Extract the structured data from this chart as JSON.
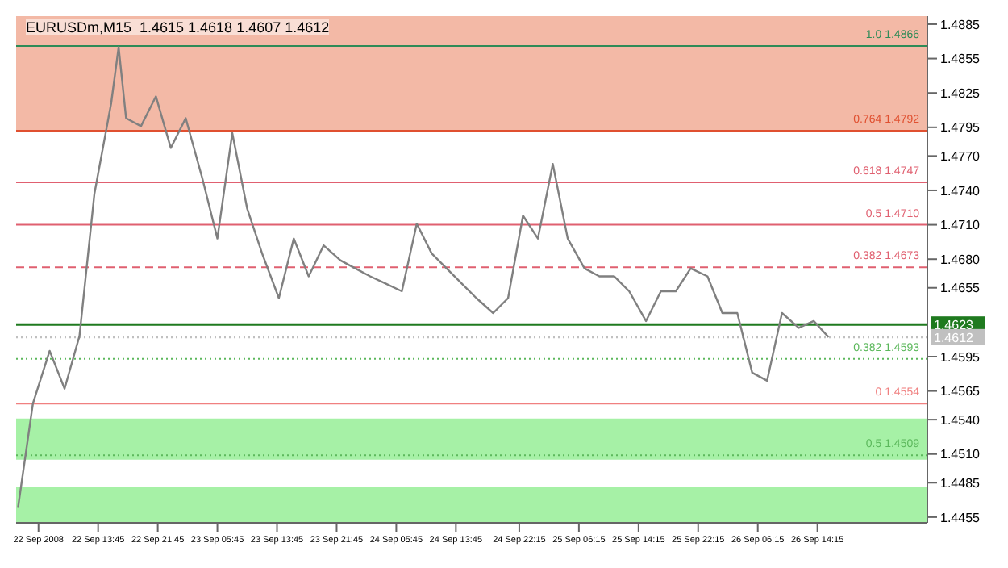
{
  "chart_data": {
    "type": "line",
    "title": "EURUSDm,M15  1.4615 1.4618 1.4607 1.4612",
    "x": [
      "2008-09-22T03:00",
      "2008-09-22T05:00",
      "2008-09-22T07:15",
      "2008-09-22T09:15",
      "2008-09-22T11:15",
      "2008-09-22T13:15",
      "2008-09-22T15:30",
      "2008-09-22T16:30",
      "2008-09-22T17:30",
      "2008-09-22T19:30",
      "2008-09-22T21:30",
      "2008-09-22T23:30",
      "2008-09-23T01:30",
      "2008-09-23T03:45",
      "2008-09-23T05:45",
      "2008-09-23T07:45",
      "2008-09-23T09:45",
      "2008-09-23T11:45",
      "2008-09-23T14:00",
      "2008-09-23T16:00",
      "2008-09-23T18:00",
      "2008-09-23T20:00",
      "2008-09-23T22:15",
      "2008-09-24T00:15",
      "2008-09-24T02:15",
      "2008-09-24T04:15",
      "2008-09-24T06:30",
      "2008-09-24T08:30",
      "2008-09-24T10:30",
      "2008-09-24T12:30",
      "2008-09-24T14:30",
      "2008-09-24T16:30",
      "2008-09-24T18:45",
      "2008-09-24T20:45",
      "2008-09-24T22:45",
      "2008-09-25T00:45",
      "2008-09-25T02:45",
      "2008-09-25T04:45",
      "2008-09-25T07:00",
      "2008-09-25T09:00",
      "2008-09-25T11:00",
      "2008-09-25T13:00",
      "2008-09-25T15:15",
      "2008-09-25T17:15",
      "2008-09-25T19:15",
      "2008-09-25T21:15",
      "2008-09-25T23:30",
      "2008-09-26T01:30",
      "2008-09-26T03:30",
      "2008-09-26T05:30",
      "2008-09-26T07:30",
      "2008-09-26T09:30",
      "2008-09-26T11:45",
      "2008-09-26T13:45",
      "2008-09-26T15:45"
    ],
    "series": [
      {
        "color": "#808080",
        "values": [
          1.4463,
          1.4554,
          1.46,
          1.4567,
          1.4613,
          1.4737,
          1.4816,
          1.4865,
          1.4803,
          1.4796,
          1.4822,
          1.4777,
          1.4803,
          1.475,
          1.4698,
          1.479,
          1.4724,
          1.4685,
          1.4646,
          1.4698,
          1.4665,
          1.4692,
          1.4679,
          1.4672,
          1.4665,
          1.4659,
          1.4652,
          1.4711,
          1.4685,
          1.4672,
          1.4659,
          1.4646,
          1.4633,
          1.4646,
          1.4718,
          1.4698,
          1.4763,
          1.4698,
          1.4672,
          1.4665,
          1.4665,
          1.4652,
          1.4626,
          1.4652,
          1.4652,
          1.4672,
          1.4665,
          1.4633,
          1.4633,
          1.4581,
          1.4574,
          1.4633,
          1.462,
          1.4626,
          1.4612
        ]
      }
    ],
    "xlim": [
      "2008-09-22T02:45",
      "2008-09-27T05:00"
    ],
    "xticks": [
      {
        "value": "2008-09-22T05:45",
        "label": "22 Sep 2008"
      },
      {
        "value": "2008-09-22T13:45",
        "label": "22 Sep 13:45"
      },
      {
        "value": "2008-09-22T21:45",
        "label": "22 Sep 21:45"
      },
      {
        "value": "2008-09-23T05:45",
        "label": "23 Sep 05:45"
      },
      {
        "value": "2008-09-23T13:45",
        "label": "23 Sep 13:45"
      },
      {
        "value": "2008-09-23T21:45",
        "label": "23 Sep 21:45"
      },
      {
        "value": "2008-09-24T05:45",
        "label": "24 Sep 05:45"
      },
      {
        "value": "2008-09-24T13:45",
        "label": "24 Sep 13:45"
      },
      {
        "value": "2008-09-24T22:15",
        "label": "24 Sep 22:15"
      },
      {
        "value": "2008-09-25T06:15",
        "label": "25 Sep 06:15"
      },
      {
        "value": "2008-09-25T14:15",
        "label": "25 Sep 14:15"
      },
      {
        "value": "2008-09-25T22:15",
        "label": "25 Sep 22:15"
      },
      {
        "value": "2008-09-26T06:15",
        "label": "26 Sep 06:15"
      },
      {
        "value": "2008-09-26T14:15",
        "label": "26 Sep 14:15"
      }
    ],
    "ylim": [
      1.445,
      1.4892
    ],
    "yticks": [
      {
        "value": 1.4885,
        "label": "1.4885"
      },
      {
        "value": 1.4855,
        "label": "1.4855"
      },
      {
        "value": 1.4825,
        "label": "1.4825"
      },
      {
        "value": 1.4795,
        "label": "1.4795"
      },
      {
        "value": 1.477,
        "label": "1.4770"
      },
      {
        "value": 1.474,
        "label": "1.4740"
      },
      {
        "value": 1.471,
        "label": "1.4710"
      },
      {
        "value": 1.468,
        "label": "1.4680"
      },
      {
        "value": 1.4655,
        "label": "1.4655"
      },
      {
        "value": 1.4595,
        "label": "1.4595"
      },
      {
        "value": 1.4565,
        "label": "1.4565"
      },
      {
        "value": 1.454,
        "label": "1.4540"
      },
      {
        "value": 1.451,
        "label": "1.4510"
      },
      {
        "value": 1.4485,
        "label": "1.4485"
      },
      {
        "value": 1.4455,
        "label": "1.4455"
      }
    ],
    "bands": [
      {
        "axis": "y",
        "from": 1.4792,
        "to": 1.4892,
        "color": "#f0a890"
      },
      {
        "axis": "y",
        "from": 1.4505,
        "to": 1.4541,
        "color": "#90ee90"
      },
      {
        "axis": "y",
        "from": 1.445,
        "to": 1.4481,
        "color": "#90ee90"
      }
    ],
    "ref_lines": [
      {
        "axis": "y",
        "value": 1.4866,
        "label": "1.0 1.4866",
        "color": "#2e8b57",
        "line_style": "solid"
      },
      {
        "axis": "y",
        "value": 1.4792,
        "label": "0.764 1.4792",
        "color": "#e05030",
        "line_style": "solid"
      },
      {
        "axis": "y",
        "value": 1.4747,
        "label": "0.618 1.4747",
        "color": "#e06070",
        "line_style": "solid"
      },
      {
        "axis": "y",
        "value": 1.471,
        "label": "0.5 1.4710",
        "color": "#e06070",
        "line_style": "solid"
      },
      {
        "axis": "y",
        "value": 1.4673,
        "label": "0.382 1.4673",
        "color": "#e06070",
        "line_style": "dashed"
      },
      {
        "axis": "y",
        "value": 1.4623,
        "label": "1.4623",
        "color": "#1f7a1f",
        "line_style": "solid"
      },
      {
        "axis": "y",
        "value": 1.4612,
        "label": "1.4612",
        "color": "#c0c0c0",
        "line_style": "dotted"
      },
      {
        "axis": "y",
        "value": 1.4593,
        "label": "0.382 1.4593",
        "color": "#5cb85c",
        "line_style": "dotted"
      },
      {
        "axis": "y",
        "value": 1.4554,
        "label": "0 1.4554",
        "color": "#f08080",
        "line_style": "solid"
      },
      {
        "axis": "y",
        "value": 1.4509,
        "label": "0.5 1.4509",
        "color": "#5cb85c",
        "line_style": "dotted"
      }
    ]
  }
}
